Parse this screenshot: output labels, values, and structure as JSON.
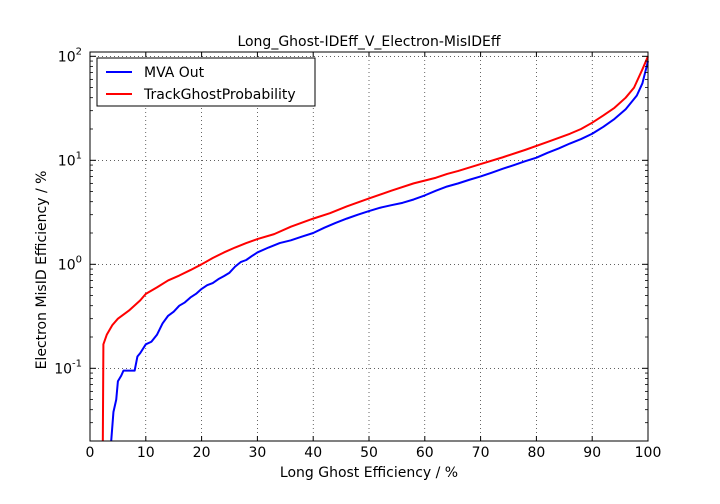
{
  "chart_data": {
    "type": "line",
    "title": "Long_Ghost-IDEff_V_Electron-MisIDEff",
    "xlabel": "Long Ghost Efficiency / %",
    "ylabel": "Electron MisID Efficiency / %",
    "xlim": [
      0,
      100
    ],
    "ylim": [
      0.02,
      110
    ],
    "yscale": "log",
    "grid": true,
    "legend_position": "top-left",
    "x_ticks": [
      0,
      10,
      20,
      30,
      40,
      50,
      60,
      70,
      80,
      90,
      100
    ],
    "y_ticks": [
      {
        "value": 0.1,
        "base": "10",
        "exp": "-1"
      },
      {
        "value": 1,
        "base": "10",
        "exp": "0"
      },
      {
        "value": 10,
        "base": "10",
        "exp": "1"
      },
      {
        "value": 100,
        "base": "10",
        "exp": "2"
      }
    ],
    "series": [
      {
        "name": "MVA Out",
        "color": "#0000ff",
        "points": [
          [
            3.8,
            0.02
          ],
          [
            4.2,
            0.038
          ],
          [
            4.7,
            0.05
          ],
          [
            5.0,
            0.075
          ],
          [
            5.6,
            0.085
          ],
          [
            6.0,
            0.095
          ],
          [
            8.0,
            0.095
          ],
          [
            8.5,
            0.13
          ],
          [
            9.0,
            0.14
          ],
          [
            10.0,
            0.17
          ],
          [
            11.0,
            0.18
          ],
          [
            12.0,
            0.21
          ],
          [
            13.0,
            0.27
          ],
          [
            14.0,
            0.32
          ],
          [
            15.0,
            0.35
          ],
          [
            16.0,
            0.4
          ],
          [
            17.0,
            0.43
          ],
          [
            18.0,
            0.48
          ],
          [
            19.0,
            0.52
          ],
          [
            20.0,
            0.58
          ],
          [
            21.0,
            0.63
          ],
          [
            22.0,
            0.66
          ],
          [
            23.0,
            0.72
          ],
          [
            24.0,
            0.77
          ],
          [
            25.0,
            0.83
          ],
          [
            26.0,
            0.95
          ],
          [
            27.0,
            1.05
          ],
          [
            28.0,
            1.1
          ],
          [
            29.0,
            1.2
          ],
          [
            30.0,
            1.3
          ],
          [
            32.0,
            1.45
          ],
          [
            34.0,
            1.6
          ],
          [
            36.0,
            1.7
          ],
          [
            38.0,
            1.85
          ],
          [
            40.0,
            2.0
          ],
          [
            42.0,
            2.25
          ],
          [
            44.0,
            2.5
          ],
          [
            46.0,
            2.75
          ],
          [
            48.0,
            3.0
          ],
          [
            50.0,
            3.25
          ],
          [
            52.0,
            3.5
          ],
          [
            54.0,
            3.7
          ],
          [
            56.0,
            3.9
          ],
          [
            58.0,
            4.2
          ],
          [
            60.0,
            4.6
          ],
          [
            62.0,
            5.1
          ],
          [
            64.0,
            5.6
          ],
          [
            66.0,
            6.0
          ],
          [
            68.0,
            6.5
          ],
          [
            70.0,
            7.0
          ],
          [
            72.0,
            7.6
          ],
          [
            74.0,
            8.3
          ],
          [
            76.0,
            9.0
          ],
          [
            78.0,
            9.8
          ],
          [
            80.0,
            10.6
          ],
          [
            82.0,
            11.8
          ],
          [
            84.0,
            13.0
          ],
          [
            86.0,
            14.5
          ],
          [
            88.0,
            16.0
          ],
          [
            90.0,
            18.0
          ],
          [
            92.0,
            21.0
          ],
          [
            94.0,
            25.0
          ],
          [
            96.0,
            31.0
          ],
          [
            98.0,
            42.0
          ],
          [
            99.0,
            55.0
          ],
          [
            100.0,
            90.0
          ]
        ]
      },
      {
        "name": "TrackGhostProbability",
        "color": "#ff0000",
        "points": [
          [
            2.3,
            0.02
          ],
          [
            2.4,
            0.17
          ],
          [
            3.0,
            0.21
          ],
          [
            4.0,
            0.26
          ],
          [
            5.0,
            0.3
          ],
          [
            7.0,
            0.36
          ],
          [
            9.0,
            0.45
          ],
          [
            10.0,
            0.52
          ],
          [
            12.0,
            0.6
          ],
          [
            14.0,
            0.7
          ],
          [
            16.0,
            0.78
          ],
          [
            18.0,
            0.88
          ],
          [
            20.0,
            1.0
          ],
          [
            22.0,
            1.15
          ],
          [
            24.0,
            1.3
          ],
          [
            26.0,
            1.45
          ],
          [
            28.0,
            1.6
          ],
          [
            30.0,
            1.75
          ],
          [
            33.0,
            1.95
          ],
          [
            36.0,
            2.3
          ],
          [
            40.0,
            2.75
          ],
          [
            43.0,
            3.1
          ],
          [
            46.0,
            3.6
          ],
          [
            50.0,
            4.3
          ],
          [
            54.0,
            5.1
          ],
          [
            58.0,
            6.0
          ],
          [
            62.0,
            6.8
          ],
          [
            64.0,
            7.4
          ],
          [
            66.0,
            7.9
          ],
          [
            70.0,
            9.2
          ],
          [
            74.0,
            10.7
          ],
          [
            78.0,
            12.6
          ],
          [
            82.0,
            15.0
          ],
          [
            86.0,
            18.0
          ],
          [
            88.0,
            20.0
          ],
          [
            90.0,
            23.0
          ],
          [
            92.0,
            27.0
          ],
          [
            94.0,
            32.0
          ],
          [
            96.0,
            40.0
          ],
          [
            97.5,
            50.0
          ],
          [
            99.0,
            75.0
          ],
          [
            100.0,
            100.0
          ]
        ]
      }
    ]
  }
}
